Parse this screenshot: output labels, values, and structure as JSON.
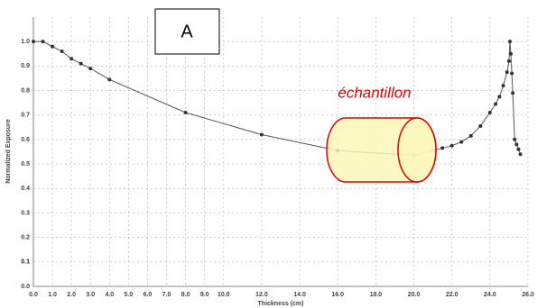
{
  "chart_data": {
    "type": "line",
    "xlabel": "Thickness (cm)",
    "ylabel": "Normalized Exposure",
    "annotations": [
      "A",
      "échantillon"
    ],
    "color": "#555555",
    "grid": true,
    "x": [
      0,
      0.5,
      1.0,
      1.5,
      2.0,
      2.5,
      3.0,
      4.0,
      8.0,
      12.0,
      16.0,
      20.0,
      21.0,
      21.5,
      22.0,
      22.5,
      23.0,
      23.5,
      24.0,
      24.3,
      24.5,
      24.7,
      24.9,
      25.0,
      25.05,
      25.1,
      25.15,
      25.2,
      25.3,
      25.4,
      25.5,
      25.6
    ],
    "values": [
      1.0,
      1.0,
      0.98,
      0.96,
      0.93,
      0.91,
      0.89,
      0.845,
      0.71,
      0.62,
      0.555,
      0.535,
      0.555,
      0.565,
      0.575,
      0.59,
      0.615,
      0.655,
      0.71,
      0.745,
      0.775,
      0.82,
      0.875,
      0.92,
      1.0,
      0.95,
      0.87,
      0.79,
      0.6,
      0.58,
      0.56,
      0.54
    ],
    "xlim": [
      0,
      26
    ],
    "ylim": [
      0,
      1.1
    ],
    "xticks": [
      {
        "value": 0,
        "label": "0.0"
      },
      {
        "value": 1,
        "label": "1.0"
      },
      {
        "value": 2,
        "label": "2.0"
      },
      {
        "value": 3,
        "label": "3.0"
      },
      {
        "value": 4,
        "label": "4.0"
      },
      {
        "value": 5,
        "label": "5.0"
      },
      {
        "value": 6,
        "label": "6.0"
      },
      {
        "value": 7,
        "label": "7.0"
      },
      {
        "value": 8,
        "label": "8.0"
      },
      {
        "value": 9,
        "label": "9.0"
      },
      {
        "value": 10,
        "label": "10.0"
      },
      {
        "value": 12,
        "label": "12.0"
      },
      {
        "value": 14,
        "label": "14.0"
      },
      {
        "value": 16,
        "label": "16.0"
      },
      {
        "value": 18,
        "label": "18.0"
      },
      {
        "value": 20,
        "label": "20.0"
      },
      {
        "value": 22,
        "label": "22.0"
      },
      {
        "value": 24,
        "label": "24.0"
      },
      {
        "value": 26,
        "label": "26.0"
      }
    ],
    "yticks": [
      {
        "value": 0,
        "label": "0.0"
      },
      0.1,
      0.2,
      0.3,
      0.4,
      0.5,
      0.6,
      0.7,
      0.8,
      0.9,
      {
        "value": 1,
        "label": "1.0"
      },
      0.1
    ]
  }
}
